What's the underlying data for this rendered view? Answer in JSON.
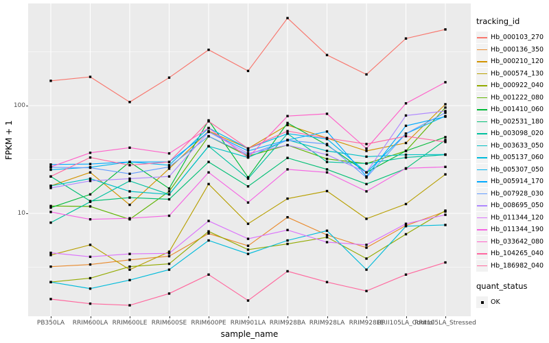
{
  "figure": {
    "background": "#ffffff",
    "panel_background": "#ebebeb",
    "grid_color": "#ffffff",
    "tick_label_color": "#4d4d4d"
  },
  "axes": {
    "x_title": "sample_name",
    "y_title": "FPKM + 1",
    "y_tick_labels": [
      "100",
      "10"
    ]
  },
  "legend": {
    "tracking_title": "tracking_id",
    "quant_title": "quant_status",
    "quant_items": [
      {
        "label": "OK",
        "marker": "black-square"
      }
    ]
  },
  "chart_data": {
    "type": "line",
    "title": "",
    "xlabel": "sample_name",
    "ylabel": "FPKM + 1",
    "y_scale": "log10",
    "y_major_ticks": [
      100,
      10
    ],
    "y_minor_gridlines": [
      316.23,
      31.62,
      3.162
    ],
    "ylim_approx": [
      1.1,
      900
    ],
    "grid": "major-and-minor-white-on-gray",
    "legend_position": "right",
    "legend_title": "tracking_id",
    "point_marker": "small-black-square",
    "categories": [
      "PB350LA",
      "RRIM600LA",
      "RRIM600LE",
      "RRIM600SE",
      "RRIM600PE",
      "RRIM901LA",
      "RRIM928BA",
      "RRIM928LA",
      "RRIM928LE",
      "RRII105LA_Control",
      "RRII105LA_Stressed"
    ],
    "series": [
      {
        "name": "Hb_000103_270",
        "color": "#F8766D",
        "values": [
          170,
          185,
          108,
          182,
          330,
          210,
          650,
          295,
          195,
          420,
          510
        ]
      },
      {
        "name": "Hb_000136_350",
        "color": "#E98A2C",
        "values": [
          3.2,
          3.35,
          3.7,
          4.0,
          6.5,
          5.0,
          9.2,
          6.3,
          4.8,
          7.7,
          10.4
        ]
      },
      {
        "name": "Hb_000210_120",
        "color": "#D29300",
        "values": [
          18,
          24,
          12,
          26,
          58,
          40,
          66,
          50,
          38,
          45,
          103
        ]
      },
      {
        "name": "Hb_000574_130",
        "color": "#B79F00",
        "values": [
          4.1,
          5.1,
          3.0,
          4.4,
          18.7,
          8.0,
          13.7,
          16.1,
          8.9,
          12.2,
          23
        ]
      },
      {
        "name": "Hb_000922_040",
        "color": "#93AA00",
        "values": [
          2.3,
          2.5,
          3.2,
          3.4,
          6.8,
          4.6,
          5.2,
          6.0,
          3.8,
          6.4,
          10.6
        ]
      },
      {
        "name": "Hb_001222_080",
        "color": "#5EB300",
        "values": [
          11.7,
          11.6,
          8.8,
          16,
          52,
          34,
          43,
          32,
          29,
          38,
          96
        ]
      },
      {
        "name": "Hb_001410_060",
        "color": "#00BA38",
        "values": [
          11.3,
          15,
          30,
          17,
          73,
          21.6,
          69,
          43,
          24,
          38,
          51
        ]
      },
      {
        "name": "Hb_002531_180",
        "color": "#00BF74",
        "values": [
          22,
          13,
          14,
          13.5,
          30,
          17.8,
          32.7,
          25.6,
          18.7,
          26,
          48
        ]
      },
      {
        "name": "Hb_003098_020",
        "color": "#00C19F",
        "values": [
          8.2,
          12.8,
          20,
          15,
          42,
          21,
          55,
          30,
          29,
          33,
          35
        ]
      },
      {
        "name": "Hb_003633_050",
        "color": "#00BFC4",
        "values": [
          18,
          21,
          16,
          15,
          42,
          33,
          48,
          38,
          33.6,
          35,
          35.2
        ]
      },
      {
        "name": "Hb_005137_060",
        "color": "#00BBDB",
        "values": [
          2.3,
          2.0,
          2.4,
          3.0,
          5.6,
          4.2,
          5.6,
          6.9,
          3.0,
          7.6,
          7.8
        ]
      },
      {
        "name": "Hb_005307_050",
        "color": "#00B4F0",
        "values": [
          25.4,
          26.8,
          30,
          28,
          62,
          40,
          55,
          49,
          24,
          55,
          80
        ]
      },
      {
        "name": "Hb_005914_170",
        "color": "#00A9FF",
        "values": [
          28.4,
          28.7,
          30,
          30,
          57,
          38,
          48,
          57.5,
          22,
          65,
          79
        ]
      },
      {
        "name": "Hb_007928_030",
        "color": "#619CFF",
        "values": [
          26.8,
          26.5,
          23.3,
          27,
          52,
          35,
          47.7,
          44,
          21.5,
          55,
          86
        ]
      },
      {
        "name": "Hb_008695_050",
        "color": "#AE87FF",
        "values": [
          17.2,
          20,
          21,
          22,
          57,
          36,
          43,
          35,
          24,
          81,
          89
        ]
      },
      {
        "name": "Hb_011344_120",
        "color": "#DB72FB",
        "values": [
          4.3,
          3.95,
          4.2,
          4.25,
          8.5,
          5.8,
          7.0,
          5.4,
          5.1,
          8.0,
          9.7
        ]
      },
      {
        "name": "Hb_011344_190",
        "color": "#F564E3",
        "values": [
          10.3,
          8.8,
          9.0,
          9.5,
          24,
          12.6,
          25.6,
          24,
          16,
          26.2,
          27
        ]
      },
      {
        "name": "Hb_033642_080",
        "color": "#FF61C9",
        "values": [
          27,
          36.5,
          40.7,
          36,
          62,
          33,
          80,
          84,
          40,
          105,
          165
        ]
      },
      {
        "name": "Hb_104265_040",
        "color": "#FF67A1",
        "values": [
          22,
          33,
          28,
          30,
          71.5,
          40,
          58,
          50,
          44,
          52,
          46
        ]
      },
      {
        "name": "Hb_186982_040",
        "color": "#FF689E",
        "values": [
          1.6,
          1.45,
          1.4,
          1.8,
          2.7,
          1.55,
          2.9,
          2.3,
          1.9,
          2.7,
          3.5
        ]
      }
    ]
  }
}
